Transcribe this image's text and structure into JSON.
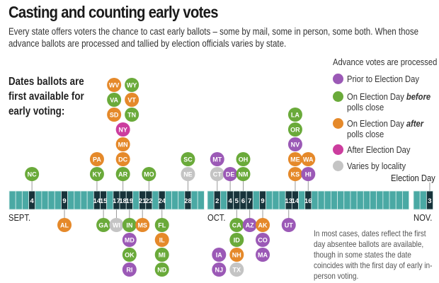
{
  "header": {
    "title": "Casting and counting early votes",
    "subtitle": "Every state offers voters the chance to cast early ballots – some by mail, some in person, some both. When those advance ballots are processed and tallied by election officials varies by state."
  },
  "side_label": "Dates ballots are first available for early voting:",
  "legend": {
    "title": "Advance votes are processed ...",
    "items": [
      {
        "key": "prior",
        "label": "Prior to Election Day",
        "color": "#9b59b6"
      },
      {
        "key": "before",
        "label": "On Election Day before polls close",
        "color": "#6aaa3a"
      },
      {
        "key": "after",
        "label": "On Election Day after polls close",
        "color": "#e5892a"
      },
      {
        "key": "post",
        "label": "After Election Day",
        "color": "#cc3d9e"
      },
      {
        "key": "varies",
        "label": "Varies by locality",
        "color": "#c4c4c4"
      }
    ]
  },
  "months": {
    "sept": "SEPT.",
    "oct": "OCT.",
    "nov": "NOV."
  },
  "election_day_label": "Election Day",
  "footnote": "In most cases, dates reflect the first day absentee ballots are available, though in some states the date coincides with the first day of early in-person voting.",
  "colors": {
    "bar": "#4aa9a4",
    "bar_highlight": "#17333a",
    "bar_divider": "#d8eeec"
  },
  "chart_data": {
    "type": "timeline",
    "title": "Casting and counting early votes",
    "xlabel": "Date ballots first available",
    "range": {
      "start": "Sept. 1",
      "end": "Nov. 3"
    },
    "highlighted_dates": [
      {
        "month": "sept",
        "day": 4
      },
      {
        "month": "sept",
        "day": 9
      },
      {
        "month": "sept",
        "day": 14
      },
      {
        "month": "sept",
        "day": 15
      },
      {
        "month": "sept",
        "day": 17
      },
      {
        "month": "sept",
        "day": 18
      },
      {
        "month": "sept",
        "day": 19
      },
      {
        "month": "sept",
        "day": 21
      },
      {
        "month": "sept",
        "day": 22
      },
      {
        "month": "sept",
        "day": 24
      },
      {
        "month": "sept",
        "day": 28
      },
      {
        "month": "oct",
        "day": 2
      },
      {
        "month": "oct",
        "day": 4
      },
      {
        "month": "oct",
        "day": 5
      },
      {
        "month": "oct",
        "day": 6
      },
      {
        "month": "oct",
        "day": 7
      },
      {
        "month": "oct",
        "day": 9
      },
      {
        "month": "oct",
        "day": 13
      },
      {
        "month": "oct",
        "day": 14
      },
      {
        "month": "oct",
        "day": 16
      },
      {
        "month": "nov",
        "day": 3
      }
    ],
    "states": [
      {
        "state": "NC",
        "month": "sept",
        "day": 4,
        "side": "up",
        "row": 0,
        "col": 0,
        "cat": "before"
      },
      {
        "state": "AL",
        "month": "sept",
        "day": 9,
        "side": "down",
        "row": 0,
        "col": 0,
        "cat": "after"
      },
      {
        "state": "KY",
        "month": "sept",
        "day": 14,
        "side": "up",
        "row": 0,
        "col": 0,
        "cat": "before"
      },
      {
        "state": "PA",
        "month": "sept",
        "day": 14,
        "side": "up",
        "row": 1,
        "col": 0,
        "cat": "after"
      },
      {
        "state": "GA",
        "month": "sept",
        "day": 15,
        "side": "down",
        "row": 0,
        "col": 0,
        "cat": "before"
      },
      {
        "state": "WI",
        "month": "sept",
        "day": 17,
        "side": "down",
        "row": 0,
        "col": 0,
        "cat": "varies"
      },
      {
        "state": "AR",
        "month": "sept",
        "day": 18,
        "side": "up",
        "row": 0,
        "col": 0,
        "cat": "before"
      },
      {
        "state": "DC",
        "month": "sept",
        "day": 18,
        "side": "up",
        "row": 1,
        "col": 0,
        "cat": "after"
      },
      {
        "state": "MN",
        "month": "sept",
        "day": 18,
        "side": "up",
        "row": 2,
        "col": 0,
        "cat": "after"
      },
      {
        "state": "NY",
        "month": "sept",
        "day": 18,
        "side": "up",
        "row": 3,
        "col": 0,
        "cat": "post"
      },
      {
        "state": "SD",
        "month": "sept",
        "day": 18,
        "side": "up",
        "row": 4,
        "col": -0.5,
        "cat": "after"
      },
      {
        "state": "TN",
        "month": "sept",
        "day": 18,
        "side": "up",
        "row": 4,
        "col": 0.5,
        "cat": "before"
      },
      {
        "state": "VA",
        "month": "sept",
        "day": 18,
        "side": "up",
        "row": 5,
        "col": -0.5,
        "cat": "before"
      },
      {
        "state": "VT",
        "month": "sept",
        "day": 18,
        "side": "up",
        "row": 5,
        "col": 0.5,
        "cat": "after"
      },
      {
        "state": "WV",
        "month": "sept",
        "day": 18,
        "side": "up",
        "row": 6,
        "col": -0.5,
        "cat": "after"
      },
      {
        "state": "WY",
        "month": "sept",
        "day": 18,
        "side": "up",
        "row": 6,
        "col": 0.5,
        "cat": "before"
      },
      {
        "state": "IN",
        "month": "sept",
        "day": 19,
        "side": "down",
        "row": 0,
        "col": 0,
        "cat": "before"
      },
      {
        "state": "MD",
        "month": "sept",
        "day": 19,
        "side": "down",
        "row": 1,
        "col": 0,
        "cat": "prior"
      },
      {
        "state": "OK",
        "month": "sept",
        "day": 19,
        "side": "down",
        "row": 2,
        "col": 0,
        "cat": "before"
      },
      {
        "state": "RI",
        "month": "sept",
        "day": 19,
        "side": "down",
        "row": 3,
        "col": 0,
        "cat": "prior"
      },
      {
        "state": "MS",
        "month": "sept",
        "day": 21,
        "side": "down",
        "row": 0,
        "col": 0,
        "cat": "after"
      },
      {
        "state": "MO",
        "month": "sept",
        "day": 22,
        "side": "up",
        "row": 0,
        "col": 0,
        "cat": "before"
      },
      {
        "state": "FL",
        "month": "sept",
        "day": 24,
        "side": "down",
        "row": 0,
        "col": 0,
        "cat": "before"
      },
      {
        "state": "IL",
        "month": "sept",
        "day": 24,
        "side": "down",
        "row": 1,
        "col": 0,
        "cat": "after"
      },
      {
        "state": "MI",
        "month": "sept",
        "day": 24,
        "side": "down",
        "row": 2,
        "col": 0,
        "cat": "before"
      },
      {
        "state": "ND",
        "month": "sept",
        "day": 24,
        "side": "down",
        "row": 3,
        "col": 0,
        "cat": "before"
      },
      {
        "state": "NE",
        "month": "sept",
        "day": 28,
        "side": "up",
        "row": 0,
        "col": 0,
        "cat": "varies"
      },
      {
        "state": "SC",
        "month": "sept",
        "day": 28,
        "side": "up",
        "row": 1,
        "col": 0,
        "cat": "before"
      },
      {
        "state": "CT",
        "month": "oct",
        "day": 2,
        "side": "up",
        "row": 0,
        "col": 0,
        "cat": "varies"
      },
      {
        "state": "MT",
        "month": "oct",
        "day": 2,
        "side": "up",
        "row": 1,
        "col": 0,
        "cat": "prior"
      },
      {
        "state": "DE",
        "month": "oct",
        "day": 4,
        "side": "up",
        "row": 0,
        "col": 0,
        "cat": "prior"
      },
      {
        "state": "CA",
        "month": "oct",
        "day": 5,
        "side": "down",
        "row": 0,
        "col": 0,
        "cat": "before"
      },
      {
        "state": "ID",
        "month": "oct",
        "day": 5,
        "side": "down",
        "row": 1,
        "col": 0,
        "cat": "before"
      },
      {
        "state": "NH",
        "month": "oct",
        "day": 5,
        "side": "down",
        "row": 2,
        "col": 0,
        "cat": "after"
      },
      {
        "state": "TX",
        "month": "oct",
        "day": 5,
        "side": "down",
        "row": 3,
        "col": 0,
        "cat": "varies"
      },
      {
        "state": "IA",
        "month": "oct",
        "day": 5,
        "side": "down",
        "row": 2,
        "col": -1,
        "cat": "prior"
      },
      {
        "state": "NJ",
        "month": "oct",
        "day": 5,
        "side": "down",
        "row": 3,
        "col": -1,
        "cat": "prior"
      },
      {
        "state": "NM",
        "month": "oct",
        "day": 6,
        "side": "up",
        "row": 0,
        "col": 0,
        "cat": "before"
      },
      {
        "state": "OH",
        "month": "oct",
        "day": 6,
        "side": "up",
        "row": 1,
        "col": 0,
        "cat": "before"
      },
      {
        "state": "AZ",
        "month": "oct",
        "day": 7,
        "side": "down",
        "row": 0,
        "col": 0,
        "cat": "prior"
      },
      {
        "state": "AK",
        "month": "oct",
        "day": 9,
        "side": "down",
        "row": 0,
        "col": 0,
        "cat": "after"
      },
      {
        "state": "CO",
        "month": "oct",
        "day": 9,
        "side": "down",
        "row": 1,
        "col": 0,
        "cat": "prior"
      },
      {
        "state": "MA",
        "month": "oct",
        "day": 9,
        "side": "down",
        "row": 2,
        "col": 0,
        "cat": "prior"
      },
      {
        "state": "UT",
        "month": "oct",
        "day": 13,
        "side": "down",
        "row": 0,
        "col": 0,
        "cat": "prior"
      },
      {
        "state": "KS",
        "month": "oct",
        "day": 14,
        "side": "up",
        "row": 0,
        "col": 0,
        "cat": "after"
      },
      {
        "state": "ME",
        "month": "oct",
        "day": 14,
        "side": "up",
        "row": 1,
        "col": 0,
        "cat": "after"
      },
      {
        "state": "NV",
        "month": "oct",
        "day": 14,
        "side": "up",
        "row": 2,
        "col": 0,
        "cat": "prior"
      },
      {
        "state": "OR",
        "month": "oct",
        "day": 14,
        "side": "up",
        "row": 3,
        "col": 0,
        "cat": "before"
      },
      {
        "state": "LA",
        "month": "oct",
        "day": 14,
        "side": "up",
        "row": 4,
        "col": 0,
        "cat": "before"
      },
      {
        "state": "HI",
        "month": "oct",
        "day": 16,
        "side": "up",
        "row": 0,
        "col": 0,
        "cat": "prior"
      },
      {
        "state": "WA",
        "month": "oct",
        "day": 16,
        "side": "up",
        "row": 1,
        "col": 0,
        "cat": "after"
      }
    ]
  }
}
